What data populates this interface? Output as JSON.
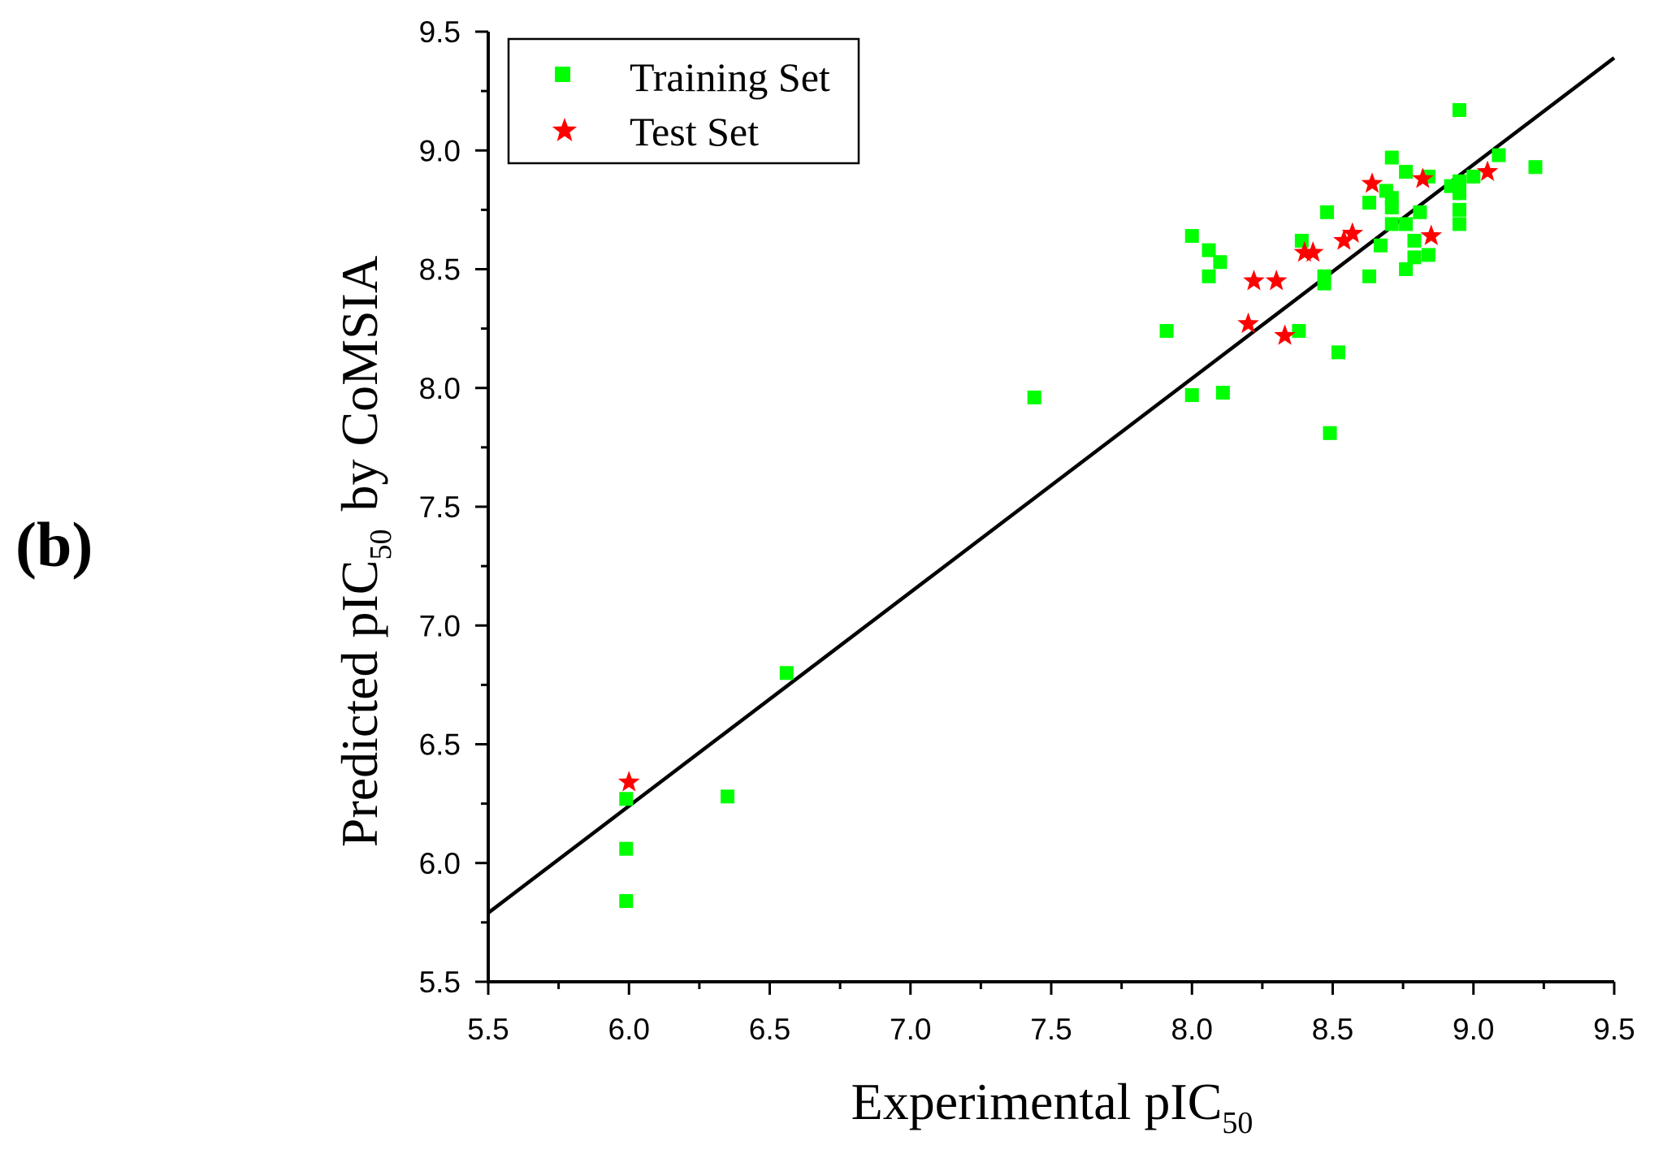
{
  "panel_label": "(b)",
  "chart_data": {
    "type": "scatter",
    "title": "",
    "xlabel": {
      "main": "Experimental pIC",
      "sub": "50"
    },
    "ylabel": {
      "main": "Predicted pIC",
      "sub": "50",
      "tail": "by CoMSIA"
    },
    "xlim": [
      5.5,
      9.5
    ],
    "ylim": [
      5.5,
      9.5
    ],
    "x_ticks": [
      "5.5",
      "6.0",
      "6.5",
      "7.0",
      "7.5",
      "8.0",
      "8.5",
      "9.0",
      "9.5"
    ],
    "y_ticks": [
      "5.5",
      "6.0",
      "6.5",
      "7.0",
      "7.5",
      "8.0",
      "8.5",
      "9.0",
      "9.5"
    ],
    "grid": false,
    "legend": {
      "position": "top-left"
    },
    "series": [
      {
        "name": "Training Set",
        "marker": "square",
        "color": "#00ff00",
        "points": [
          [
            5.99,
            6.27
          ],
          [
            5.99,
            6.06
          ],
          [
            5.99,
            5.84
          ],
          [
            6.35,
            6.28
          ],
          [
            6.56,
            6.8
          ],
          [
            7.44,
            7.96
          ],
          [
            7.91,
            8.24
          ],
          [
            8.0,
            8.64
          ],
          [
            8.0,
            7.97
          ],
          [
            8.06,
            8.58
          ],
          [
            8.06,
            8.47
          ],
          [
            8.1,
            8.53
          ],
          [
            8.11,
            7.98
          ],
          [
            8.38,
            8.24
          ],
          [
            8.39,
            8.62
          ],
          [
            8.48,
            8.74
          ],
          [
            8.47,
            8.47
          ],
          [
            8.47,
            8.44
          ],
          [
            8.49,
            7.81
          ],
          [
            8.52,
            8.15
          ],
          [
            8.63,
            8.78
          ],
          [
            8.63,
            8.47
          ],
          [
            8.67,
            8.6
          ],
          [
            8.69,
            8.83
          ],
          [
            8.71,
            8.97
          ],
          [
            8.71,
            8.8
          ],
          [
            8.71,
            8.76
          ],
          [
            8.71,
            8.69
          ],
          [
            8.76,
            8.91
          ],
          [
            8.76,
            8.69
          ],
          [
            8.76,
            8.5
          ],
          [
            8.79,
            8.62
          ],
          [
            8.79,
            8.55
          ],
          [
            8.81,
            8.74
          ],
          [
            8.84,
            8.89
          ],
          [
            8.84,
            8.56
          ],
          [
            8.92,
            8.85
          ],
          [
            8.95,
            9.17
          ],
          [
            8.95,
            8.87
          ],
          [
            8.95,
            8.82
          ],
          [
            8.95,
            8.75
          ],
          [
            8.95,
            8.69
          ],
          [
            9.0,
            8.89
          ],
          [
            9.09,
            8.98
          ],
          [
            9.22,
            8.93
          ]
        ]
      },
      {
        "name": "Test Set",
        "marker": "star",
        "color": "#ff0000",
        "points": [
          [
            6.0,
            6.34
          ],
          [
            8.2,
            8.27
          ],
          [
            8.22,
            8.45
          ],
          [
            8.3,
            8.45
          ],
          [
            8.33,
            8.22
          ],
          [
            8.4,
            8.57
          ],
          [
            8.43,
            8.57
          ],
          [
            8.54,
            8.62
          ],
          [
            8.57,
            8.65
          ],
          [
            8.64,
            8.86
          ],
          [
            8.82,
            8.88
          ],
          [
            8.85,
            8.64
          ],
          [
            9.05,
            8.91
          ]
        ]
      }
    ],
    "regression_line": {
      "x": [
        5.5,
        9.5
      ],
      "y": [
        5.79,
        9.39
      ],
      "color": "#000000"
    }
  }
}
